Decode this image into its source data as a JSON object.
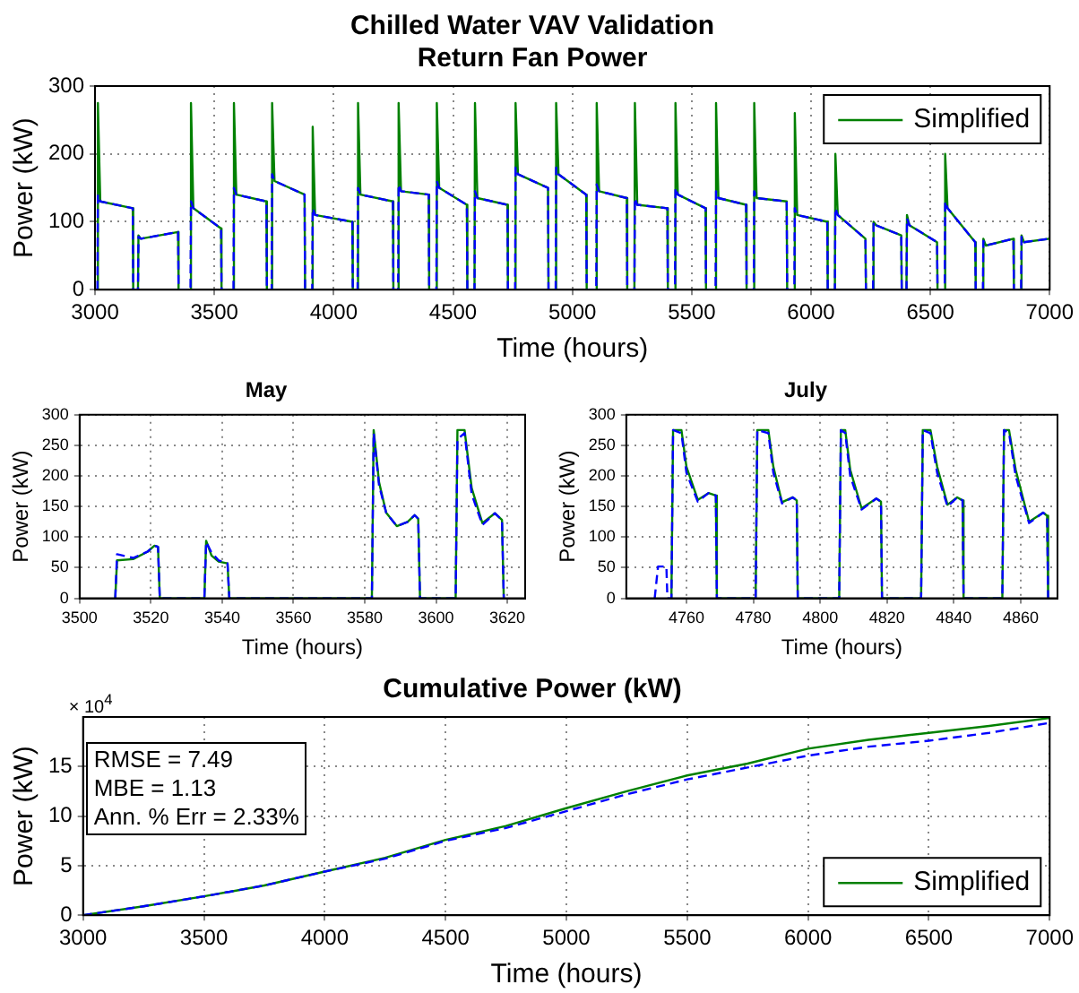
{
  "chart_data": [
    {
      "type": "line",
      "title": "Chilled Water VAV Validation",
      "subtitle": "Return Fan Power",
      "xlabel": "Time (hours)",
      "ylabel": "Power (kW)",
      "xlim": [
        3000,
        7000
      ],
      "xticks": [
        3000,
        3500,
        4000,
        4500,
        5000,
        5500,
        6000,
        6500,
        7000
      ],
      "ylim": [
        0,
        300
      ],
      "yticks": [
        0,
        100,
        200,
        300
      ],
      "grid": true,
      "legend": "top right",
      "x": [
        3010,
        3012,
        3022,
        3158,
        3160,
        3180,
        3182,
        3192,
        3348,
        3350,
        3400,
        3402,
        3412,
        3528,
        3530,
        3580,
        3582,
        3592,
        3718,
        3720,
        3740,
        3742,
        3752,
        3878,
        3880,
        3910,
        3912,
        3922,
        4078,
        4080,
        4100,
        4102,
        4112,
        4248,
        4250,
        4270,
        4272,
        4282,
        4398,
        4400,
        4430,
        4432,
        4442,
        4558,
        4560,
        4590,
        4592,
        4602,
        4728,
        4730,
        4760,
        4762,
        4772,
        4898,
        4900,
        4930,
        4932,
        4942,
        5058,
        5060,
        5100,
        5102,
        5112,
        5228,
        5230,
        5260,
        5262,
        5272,
        5398,
        5400,
        5430,
        5432,
        5442,
        5558,
        5560,
        5600,
        5602,
        5612,
        5728,
        5730,
        5760,
        5762,
        5772,
        5898,
        5900,
        5930,
        5932,
        5942,
        6068,
        6070,
        6100,
        6102,
        6112,
        6228,
        6230,
        6260,
        6262,
        6272,
        6378,
        6380,
        6400,
        6402,
        6412,
        6528,
        6530,
        6560,
        6562,
        6572,
        6688,
        6690,
        6720,
        6722,
        6732,
        6848,
        6850,
        6880,
        6882,
        6892,
        6998
      ],
      "series": [
        {
          "color": "#0000ff",
          "line_style": "dashed",
          "values": [
            0,
            140,
            130,
            120,
            0,
            0,
            78,
            75,
            85,
            0,
            0,
            130,
            120,
            90,
            0,
            0,
            150,
            140,
            130,
            0,
            0,
            170,
            160,
            140,
            0,
            0,
            120,
            110,
            100,
            0,
            0,
            150,
            140,
            130,
            0,
            0,
            155,
            145,
            140,
            0,
            0,
            160,
            150,
            125,
            0,
            0,
            145,
            135,
            125,
            0,
            0,
            180,
            170,
            150,
            0,
            0,
            180,
            170,
            140,
            0,
            0,
            155,
            145,
            135,
            0,
            0,
            135,
            125,
            120,
            0,
            0,
            150,
            140,
            120,
            0,
            0,
            145,
            135,
            125,
            0,
            0,
            145,
            135,
            130,
            0,
            0,
            120,
            110,
            100,
            0,
            0,
            120,
            110,
            75,
            0,
            0,
            100,
            95,
            80,
            0,
            0,
            105,
            95,
            70,
            0,
            0,
            130,
            120,
            70,
            0,
            0,
            72,
            65,
            75,
            0,
            0,
            78,
            70,
            75
          ]
        },
        {
          "name": "Simplified",
          "color": "#008000",
          "line_style": "solid",
          "values": [
            0,
            275,
            130,
            120,
            0,
            0,
            80,
            75,
            85,
            0,
            0,
            275,
            120,
            90,
            0,
            0,
            275,
            140,
            130,
            0,
            0,
            275,
            160,
            140,
            0,
            0,
            240,
            110,
            100,
            0,
            0,
            275,
            140,
            130,
            0,
            0,
            275,
            145,
            140,
            0,
            0,
            275,
            150,
            125,
            0,
            0,
            275,
            135,
            125,
            0,
            0,
            275,
            170,
            150,
            0,
            0,
            275,
            170,
            140,
            0,
            0,
            275,
            145,
            135,
            0,
            0,
            275,
            125,
            120,
            0,
            0,
            275,
            140,
            120,
            0,
            0,
            275,
            135,
            125,
            0,
            0,
            275,
            135,
            130,
            0,
            0,
            260,
            110,
            100,
            0,
            0,
            200,
            110,
            75,
            0,
            0,
            100,
            95,
            80,
            0,
            0,
            110,
            95,
            70,
            0,
            0,
            200,
            120,
            70,
            0,
            0,
            75,
            65,
            75,
            0,
            0,
            80,
            70,
            75
          ]
        }
      ]
    },
    {
      "type": "line",
      "title": "May",
      "xlabel": "Time (hours)",
      "ylabel": "Power (kW)",
      "xlim": [
        3500,
        3625
      ],
      "xticks": [
        3500,
        3520,
        3540,
        3560,
        3580,
        3600,
        3620
      ],
      "ylim": [
        0,
        300
      ],
      "yticks": [
        0,
        50,
        100,
        150,
        200,
        250,
        300
      ],
      "grid": true,
      "x": [
        3510,
        3510.5,
        3515,
        3519,
        3521,
        3522,
        3522.5,
        3535,
        3535.5,
        3537,
        3539,
        3541.5,
        3542,
        3582,
        3582.5,
        3584,
        3586,
        3589,
        3592,
        3594,
        3595,
        3595.5,
        3605.5,
        3606,
        3608,
        3610,
        3613,
        3616.5,
        3618.5,
        3619
      ],
      "series": [
        {
          "color": "#0000ff",
          "line_style": "dashed",
          "values": [
            0,
            72,
            66,
            76,
            86,
            84,
            0,
            0,
            92,
            75,
            62,
            57,
            0,
            0,
            270,
            185,
            140,
            118,
            125,
            136,
            130,
            0,
            0,
            260,
            270,
            170,
            120,
            139,
            128,
            0
          ]
        },
        {
          "color": "#008000",
          "line_style": "solid",
          "values": [
            0,
            62,
            64,
            76,
            86,
            84,
            0,
            0,
            94,
            70,
            60,
            57,
            0,
            0,
            275,
            190,
            140,
            118,
            125,
            136,
            130,
            0,
            0,
            275,
            275,
            180,
            123,
            139,
            128,
            0
          ]
        }
      ]
    },
    {
      "type": "line",
      "title": "July",
      "xlabel": "Time (hours)",
      "ylabel": "Power (kW)",
      "xlim": [
        4742,
        4871
      ],
      "xticks": [
        4760,
        4780,
        4800,
        4820,
        4840,
        4860
      ],
      "ylim": [
        0,
        300
      ],
      "yticks": [
        0,
        50,
        100,
        150,
        200,
        250,
        300
      ],
      "grid": true,
      "x": [
        4755.5,
        4756,
        4758.5,
        4760,
        4763.4,
        4766.6,
        4768.8,
        4769.1,
        4780.7,
        4781.2,
        4784.5,
        4786,
        4788.6,
        4791.8,
        4793,
        4793.3,
        4805.7,
        4806.2,
        4807.5,
        4809,
        4812.4,
        4816.8,
        4818.2,
        4818.5,
        4830.2,
        4830.7,
        4833,
        4835,
        4838.1,
        4841,
        4842.6,
        4842.9,
        4854.5,
        4855,
        4856.5,
        4858.5,
        4862.5,
        4866.7,
        4867.9,
        4868.2
      ],
      "series": [
        {
          "color": "#0000ff",
          "line_style": "dashed",
          "x": [
            4750.5,
            4751.5,
            4754,
            4754.3,
            4755.5,
            4756,
            4758.5,
            4760,
            4763.4,
            4766.6,
            4768.8,
            4769.1,
            4780.7,
            4781.2,
            4784.5,
            4786,
            4788.6,
            4791.8,
            4793,
            4793.3,
            4805.7,
            4806.2,
            4807.5,
            4809,
            4812.4,
            4816.8,
            4818.2,
            4818.5,
            4830.2,
            4830.7,
            4833,
            4835,
            4838.1,
            4841,
            4842.6,
            4842.9,
            4854.5,
            4855,
            4856.5,
            4858.5,
            4862.5,
            4866.7,
            4867.9,
            4868.2
          ],
          "values": [
            0,
            52,
            52,
            0,
            0,
            275,
            270,
            205,
            158,
            172,
            168,
            0,
            0,
            275,
            270,
            205,
            155,
            165,
            160,
            0,
            0,
            275,
            270,
            200,
            145,
            163,
            158,
            0,
            0,
            275,
            270,
            205,
            150,
            165,
            160,
            0,
            0,
            275,
            270,
            200,
            123,
            140,
            135,
            0
          ]
        },
        {
          "color": "#008000",
          "line_style": "solid",
          "values": [
            0,
            275,
            275,
            215,
            161,
            172,
            168,
            0,
            0,
            275,
            275,
            215,
            157,
            165,
            160,
            0,
            0,
            275,
            275,
            210,
            147,
            163,
            158,
            0,
            0,
            275,
            275,
            215,
            153,
            165,
            160,
            0,
            0,
            275,
            275,
            210,
            125,
            140,
            135,
            0
          ]
        }
      ]
    },
    {
      "type": "line",
      "title": "Cumulative Power (kW)",
      "xlabel": "Time (hours)",
      "ylabel": "Power (kW)",
      "xlim": [
        3000,
        7000
      ],
      "xticks": [
        3000,
        3500,
        4000,
        4500,
        5000,
        5500,
        6000,
        6500,
        7000
      ],
      "ylim": [
        0,
        20
      ],
      "yticks": [
        0,
        5,
        10,
        15
      ],
      "grid": true,
      "legend": "bottom right",
      "annotations": [
        "× 10$^{4}$",
        "RMSE = 7.49",
        "MBE = 1.13",
        "Ann. % Err = 2.33%"
      ],
      "x": [
        3000,
        3250,
        3500,
        3750,
        4000,
        4250,
        4500,
        4750,
        5000,
        5250,
        5500,
        5750,
        6000,
        6250,
        6500,
        6750,
        7000
      ],
      "series": [
        {
          "color": "#0000ff",
          "line_style": "dashed",
          "values": [
            0,
            0.9,
            1.9,
            3.0,
            4.4,
            5.7,
            7.5,
            8.8,
            10.5,
            12.2,
            13.7,
            14.9,
            16.1,
            17.0,
            17.6,
            18.4,
            19.4
          ]
        },
        {
          "name": "Simplified",
          "color": "#008000",
          "line_style": "solid",
          "values": [
            0,
            0.9,
            1.9,
            3.0,
            4.4,
            5.8,
            7.6,
            9.0,
            10.8,
            12.5,
            14.1,
            15.3,
            16.8,
            17.7,
            18.4,
            19.1,
            19.9
          ]
        }
      ]
    }
  ]
}
